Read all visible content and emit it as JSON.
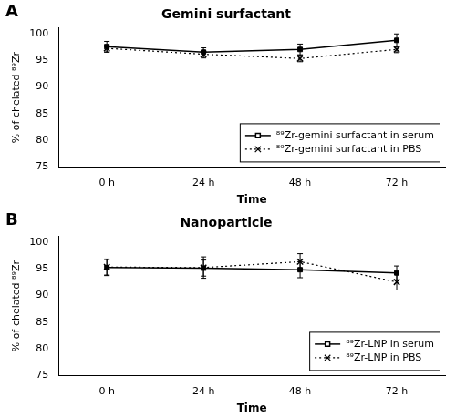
{
  "chart_data": [
    {
      "type": "line",
      "title": "Gemini surfactant",
      "categories": [
        "0 h",
        "24 h",
        "48 h",
        "72 h"
      ],
      "xlabel": "Time",
      "ylabel": "% of chelated ⁸⁹Zr",
      "ylim": [
        75,
        101
      ],
      "yticks": [
        75,
        80,
        85,
        90,
        95,
        100
      ],
      "grid": false,
      "legend": "lower right",
      "annotations": [
        "A"
      ],
      "series": [
        {
          "name": "⁸⁹Zr-gemini surfactant in serum",
          "color": "#000000",
          "marker": "square",
          "line_style": "solid",
          "values": [
            97.5,
            96.5,
            97.0,
            98.7
          ],
          "errors": [
            1.0,
            0.8,
            1.0,
            1.2
          ]
        },
        {
          "name": "⁸⁹Zr-gemini surfactant in PBS",
          "color": "#000000",
          "marker": "x",
          "line_style": "dotted",
          "values": [
            97.2,
            96.1,
            95.3,
            97.0
          ],
          "errors": [
            0.7,
            0.7,
            0.6,
            0.6
          ]
        }
      ]
    },
    {
      "type": "line",
      "title": "Nanoparticle",
      "categories": [
        "0 h",
        "24 h",
        "48 h",
        "72 h"
      ],
      "xlabel": "Time",
      "ylabel": "% of chelated ⁸⁹Zr",
      "ylim": [
        75,
        101
      ],
      "yticks": [
        75,
        80,
        85,
        90,
        95,
        100
      ],
      "grid": false,
      "legend": "lower right",
      "annotations": [
        "B"
      ],
      "series": [
        {
          "name": "⁸⁹Zr-LNP in serum",
          "color": "#000000",
          "marker": "square",
          "line_style": "solid",
          "values": [
            95.2,
            95.1,
            94.8,
            94.2
          ],
          "errors": [
            1.5,
            1.5,
            1.5,
            1.3
          ]
        },
        {
          "name": "⁸⁹Zr-LNP in PBS",
          "color": "#000000",
          "marker": "x",
          "line_style": "dotted",
          "values": [
            95.3,
            95.2,
            96.3,
            92.5
          ],
          "errors": [
            1.5,
            2.0,
            1.5,
            1.5
          ]
        }
      ]
    }
  ]
}
